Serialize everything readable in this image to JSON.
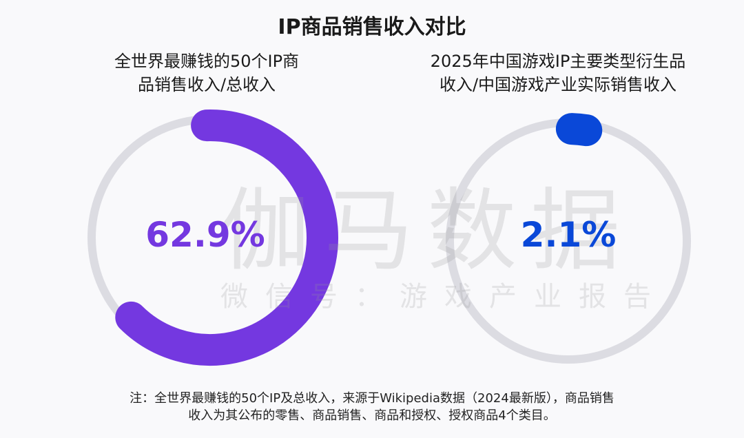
{
  "chart_data": [
    {
      "type": "pie",
      "subtitle": "全世界最赚钱的50个IP商品销售收入/总收入",
      "value": 62.9,
      "label": "62.9%",
      "color": "#7438e0",
      "track_color": "#dcdce2"
    },
    {
      "type": "pie",
      "subtitle": "2025年中国游戏IP主要类型衍生品收入/中国游戏产业实际销售收入",
      "value": 2.1,
      "label": "2.1%",
      "color": "#0a48d8",
      "track_color": "#dcdce2"
    }
  ],
  "title": "IP商品销售收入对比",
  "left": {
    "subtitle_line1": "全世界最赚钱的50个IP商",
    "subtitle_line2": "品销售收入/总收入"
  },
  "right": {
    "subtitle_line1": "2025年中国游戏IP主要类型衍生品",
    "subtitle_line2": "收入/中国游戏产业实际销售收入"
  },
  "watermark": {
    "brand": "伽马数据",
    "account": "微信号：游戏产业报告"
  },
  "note": {
    "line1": "注：全世界最赚钱的50个IP及总收入，来源于Wikipedia数据（2024最新版），商品销售",
    "line2": "收入为其公布的零售、商品销售、商品和授权、授权商品4个类目。"
  }
}
